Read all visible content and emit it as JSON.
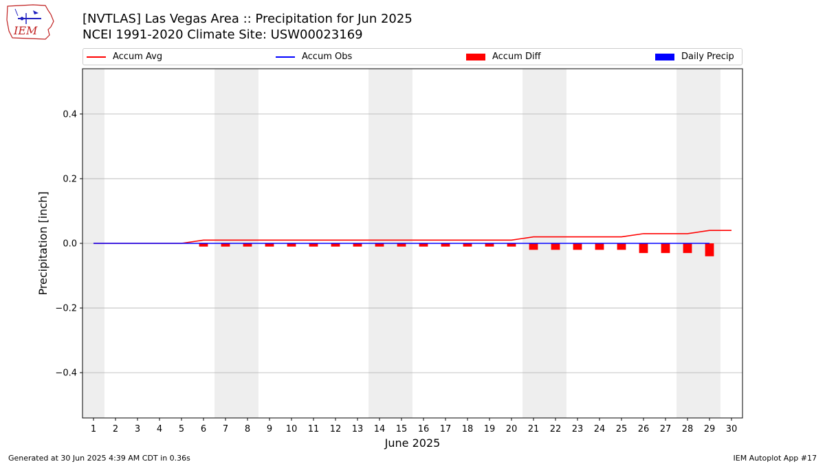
{
  "logo": {
    "text": "IEM"
  },
  "title": {
    "line1": "[NVTLAS] Las Vegas Area :: Precipitation for Jun 2025",
    "line2": "NCEI 1991-2020 Climate Site: USW00023169"
  },
  "legend": [
    {
      "label": "Accum Avg",
      "kind": "line",
      "color": "#ff0000"
    },
    {
      "label": "Accum Obs",
      "kind": "line",
      "color": "#0000ff"
    },
    {
      "label": "Accum Diff",
      "kind": "patch",
      "color": "#ff0000"
    },
    {
      "label": "Daily Precip",
      "kind": "patch",
      "color": "#0000ff"
    }
  ],
  "chart_data": {
    "type": "line",
    "xlabel": "June 2025",
    "ylabel": "Precipitation [inch]",
    "xlim": [
      0.5,
      30.5
    ],
    "ylim": [
      -0.54,
      0.54
    ],
    "x_ticks": [
      1,
      2,
      3,
      4,
      5,
      6,
      7,
      8,
      9,
      10,
      11,
      12,
      13,
      14,
      15,
      16,
      17,
      18,
      19,
      20,
      21,
      22,
      23,
      24,
      25,
      26,
      27,
      28,
      29,
      30
    ],
    "y_ticks": [
      -0.4,
      -0.2,
      0.0,
      0.2,
      0.4
    ],
    "y_tick_labels": [
      "−0.4",
      "−0.2",
      "0.0",
      "0.2",
      "0.4"
    ],
    "grid": "horizontal",
    "weekend_shading": [
      [
        0.5,
        1.5
      ],
      [
        6.5,
        8.5
      ],
      [
        13.5,
        15.5
      ],
      [
        20.5,
        22.5
      ],
      [
        27.5,
        29.5
      ]
    ],
    "shading_color": "#eeeeee",
    "series": [
      {
        "name": "Accum Avg",
        "type": "line",
        "color": "#ff0000",
        "x": [
          1,
          2,
          3,
          4,
          5,
          6,
          7,
          8,
          9,
          10,
          11,
          12,
          13,
          14,
          15,
          16,
          17,
          18,
          19,
          20,
          21,
          22,
          23,
          24,
          25,
          26,
          27,
          28,
          29,
          30
        ],
        "values": [
          0,
          0,
          0,
          0,
          0,
          0.01,
          0.01,
          0.01,
          0.01,
          0.01,
          0.01,
          0.01,
          0.01,
          0.01,
          0.01,
          0.01,
          0.01,
          0.01,
          0.01,
          0.01,
          0.02,
          0.02,
          0.02,
          0.02,
          0.02,
          0.03,
          0.03,
          0.03,
          0.04,
          0.04
        ]
      },
      {
        "name": "Accum Obs",
        "type": "line",
        "color": "#0000ff",
        "x": [
          1,
          2,
          3,
          4,
          5,
          6,
          7,
          8,
          9,
          10,
          11,
          12,
          13,
          14,
          15,
          16,
          17,
          18,
          19,
          20,
          21,
          22,
          23,
          24,
          25,
          26,
          27,
          28,
          29
        ],
        "values": [
          0,
          0,
          0,
          0,
          0,
          0,
          0,
          0,
          0,
          0,
          0,
          0,
          0,
          0,
          0,
          0,
          0,
          0,
          0,
          0,
          0,
          0,
          0,
          0,
          0,
          0,
          0,
          0,
          0
        ]
      },
      {
        "name": "Accum Diff",
        "type": "bar",
        "color": "#ff0000",
        "x": [
          1,
          2,
          3,
          4,
          5,
          6,
          7,
          8,
          9,
          10,
          11,
          12,
          13,
          14,
          15,
          16,
          17,
          18,
          19,
          20,
          21,
          22,
          23,
          24,
          25,
          26,
          27,
          28,
          29
        ],
        "values": [
          0,
          0,
          0,
          0,
          0,
          -0.01,
          -0.01,
          -0.01,
          -0.01,
          -0.01,
          -0.01,
          -0.01,
          -0.01,
          -0.01,
          -0.01,
          -0.01,
          -0.01,
          -0.01,
          -0.01,
          -0.01,
          -0.02,
          -0.02,
          -0.02,
          -0.02,
          -0.02,
          -0.03,
          -0.03,
          -0.03,
          -0.04
        ]
      },
      {
        "name": "Daily Precip",
        "type": "bar",
        "color": "#0000ff",
        "x": [
          1,
          2,
          3,
          4,
          5,
          6,
          7,
          8,
          9,
          10,
          11,
          12,
          13,
          14,
          15,
          16,
          17,
          18,
          19,
          20,
          21,
          22,
          23,
          24,
          25,
          26,
          27,
          28,
          29
        ],
        "values": [
          0,
          0,
          0,
          0,
          0,
          0,
          0,
          0,
          0,
          0,
          0,
          0,
          0,
          0,
          0,
          0,
          0,
          0,
          0,
          0,
          0,
          0,
          0,
          0,
          0,
          0,
          0,
          0,
          0
        ]
      }
    ]
  },
  "footer": {
    "left": "Generated at 30 Jun 2025 4:39 AM CDT in 0.36s",
    "right": "IEM Autoplot App #17"
  }
}
